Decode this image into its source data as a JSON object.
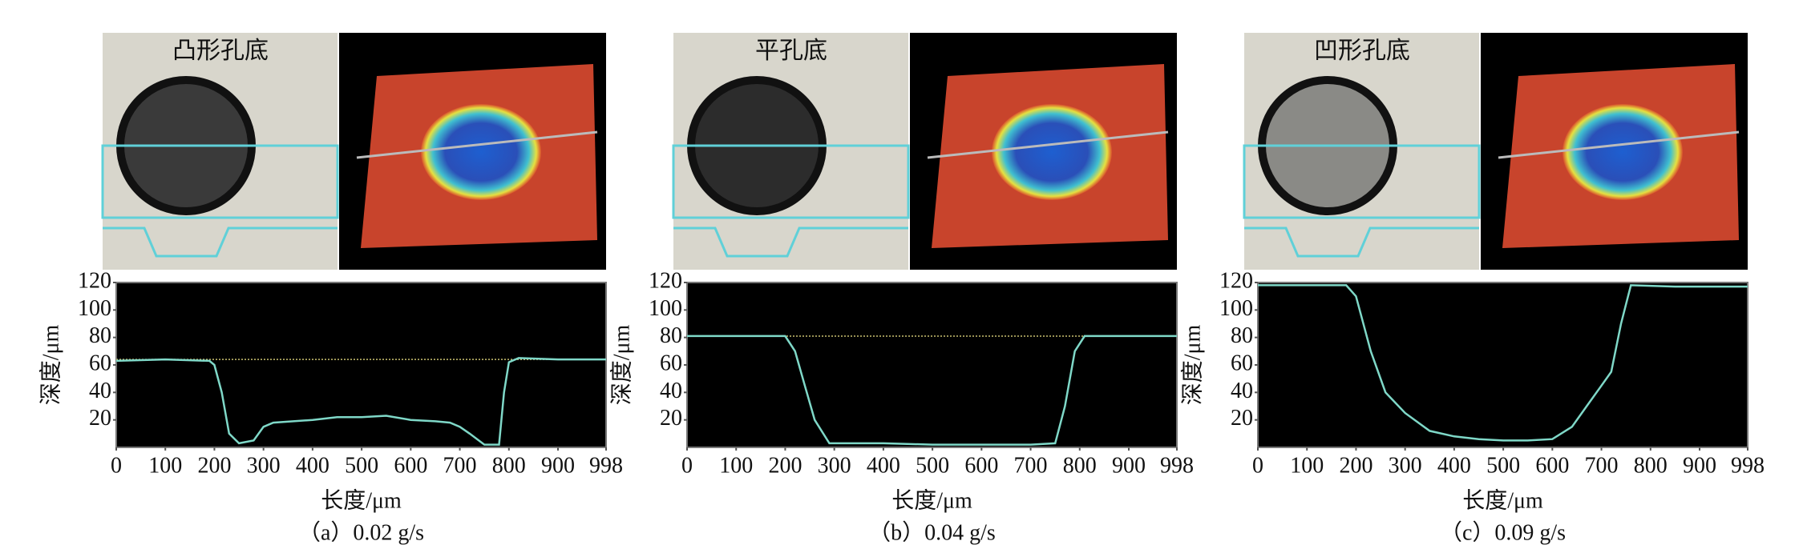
{
  "chart_data": [
    {
      "type": "line",
      "image_label": "凸形孔底",
      "caption": "（a）0.02 g/s",
      "xlabel": "长度/μm",
      "ylabel": "深度/μm",
      "xlim": [
        0,
        998
      ],
      "xticks": [
        0,
        100,
        200,
        300,
        400,
        500,
        600,
        700,
        800,
        900,
        998
      ],
      "ylim": [
        0,
        120
      ],
      "yticks": [
        20,
        40,
        60,
        80,
        100,
        120
      ],
      "color": "#7fd8c8",
      "reference_line": {
        "value": 64,
        "color": "#c9c070"
      },
      "x": [
        0,
        100,
        190,
        200,
        215,
        230,
        250,
        280,
        300,
        320,
        400,
        450,
        500,
        550,
        600,
        650,
        680,
        700,
        720,
        750,
        780,
        790,
        800,
        820,
        900,
        998
      ],
      "values": [
        63,
        64,
        63,
        60,
        40,
        10,
        3,
        5,
        15,
        18,
        20,
        22,
        22,
        23,
        20,
        19,
        18,
        15,
        10,
        2,
        2,
        40,
        62,
        65,
        64,
        64
      ]
    },
    {
      "type": "line",
      "image_label": "平孔底",
      "caption": "（b）0.04 g/s",
      "xlabel": "长度/μm",
      "ylabel": "深度/μm",
      "xlim": [
        0,
        998
      ],
      "xticks": [
        0,
        100,
        200,
        300,
        400,
        500,
        600,
        700,
        800,
        900,
        998
      ],
      "ylim": [
        0,
        120
      ],
      "yticks": [
        20,
        40,
        60,
        80,
        100,
        120
      ],
      "color": "#7fd8c8",
      "reference_line": {
        "value": 81,
        "color": "#c9c070"
      },
      "x": [
        0,
        100,
        200,
        220,
        240,
        260,
        290,
        400,
        500,
        600,
        700,
        750,
        770,
        790,
        810,
        900,
        998
      ],
      "values": [
        81,
        81,
        81,
        70,
        45,
        20,
        3,
        3,
        2,
        2,
        2,
        3,
        30,
        70,
        81,
        81,
        81
      ]
    },
    {
      "type": "line",
      "image_label": "凹形孔底",
      "caption": "（c）0.09 g/s",
      "xlabel": "长度/μm",
      "ylabel": "深度/μm",
      "xlim": [
        0,
        998
      ],
      "xticks": [
        0,
        100,
        200,
        300,
        400,
        500,
        600,
        700,
        800,
        900,
        998
      ],
      "ylim": [
        0,
        120
      ],
      "yticks": [
        20,
        40,
        60,
        80,
        100,
        120
      ],
      "color": "#7fd8c8",
      "x": [
        0,
        100,
        180,
        200,
        230,
        260,
        300,
        350,
        400,
        450,
        500,
        550,
        600,
        640,
        670,
        700,
        720,
        740,
        760,
        850,
        998
      ],
      "values": [
        118,
        118,
        118,
        110,
        70,
        40,
        25,
        12,
        8,
        6,
        5,
        5,
        6,
        15,
        30,
        45,
        55,
        90,
        118,
        117,
        117
      ]
    }
  ]
}
